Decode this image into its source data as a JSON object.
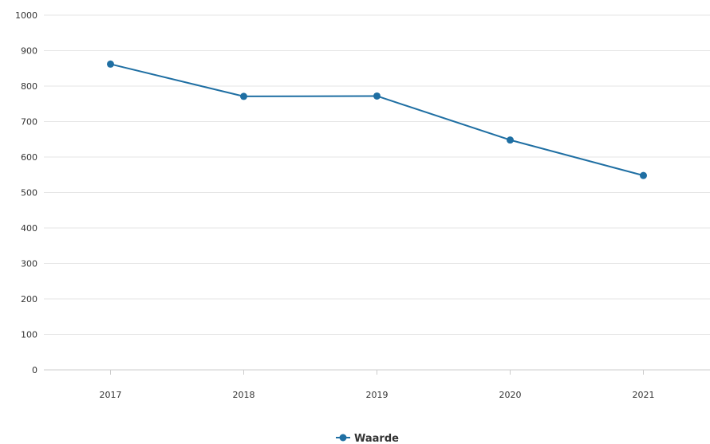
{
  "chart_data": {
    "type": "line",
    "categories": [
      "2017",
      "2018",
      "2019",
      "2020",
      "2021"
    ],
    "series": [
      {
        "name": "Waarde",
        "values": [
          862,
          771,
          772,
          648,
          548
        ],
        "color": "#1f6fa3"
      }
    ],
    "ylim": [
      0,
      1000
    ],
    "yticks": [
      0,
      100,
      200,
      300,
      400,
      500,
      600,
      700,
      800,
      900,
      1000
    ],
    "grid": true,
    "legend_position": "bottom-center"
  }
}
